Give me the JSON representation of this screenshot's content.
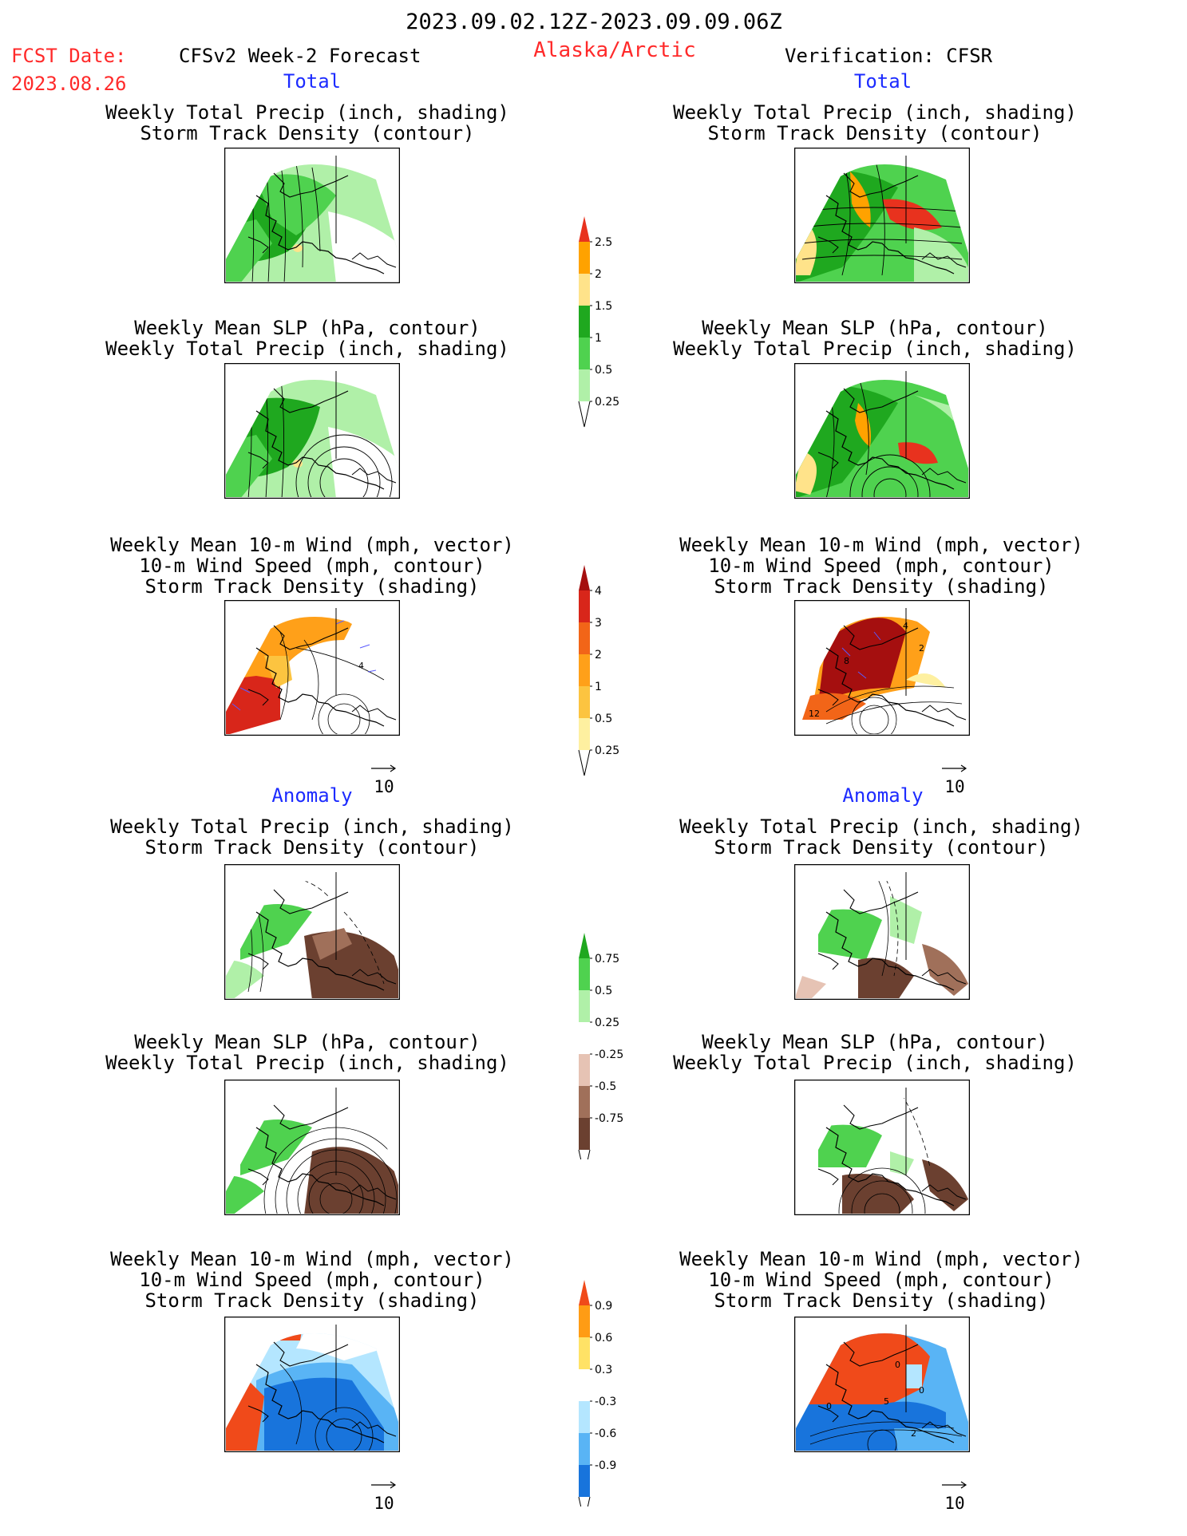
{
  "header": {
    "date_range": "2023.09.02.12Z-2023.09.09.06Z",
    "fcst_label": "FCST Date:",
    "fcst_date": "2023.08.26",
    "model_title": "CFSv2 Week-2 Forecast",
    "region": "Alaska/Arctic",
    "verification": "Verification: CFSR"
  },
  "sections": {
    "total_left": "Total",
    "total_right": "Total",
    "anomaly_left": "Anomaly",
    "anomaly_right": "Anomaly"
  },
  "panel_titles": {
    "precip_storm": [
      "Weekly Total Precip (inch, shading)",
      "Storm Track Density (contour)"
    ],
    "slp_precip": [
      "Weekly Mean SLP (hPa, contour)",
      "Weekly Total Precip (inch, shading)"
    ],
    "wind_storm": [
      "Weekly Mean 10-m Wind (mph, vector)",
      "10-m Wind Speed (mph, contour)",
      "Storm Track Density (shading)"
    ]
  },
  "vector_reference": "10",
  "contour_labels": {
    "total_wind_left": [
      "4"
    ],
    "total_wind_right": [
      "4",
      "2",
      "8",
      "12"
    ],
    "anom_wind_right": [
      "0",
      "5",
      "0",
      "2",
      "0"
    ]
  },
  "colorbars": {
    "precip_total": {
      "labels": [
        "2.5",
        "2",
        "1.5",
        "1",
        "0.5",
        "0.25"
      ],
      "colors": [
        "#e8321e",
        "#ffa200",
        "#ffe38a",
        "#1fa81f",
        "#4fd24f",
        "#b0f0a8"
      ]
    },
    "storm_total": {
      "labels": [
        "4",
        "3",
        "2",
        "1",
        "0.5",
        "0.25"
      ],
      "colors": [
        "#a50f0f",
        "#d8261a",
        "#f26518",
        "#ffa019",
        "#fcc440",
        "#fef0a0"
      ]
    },
    "precip_anom": {
      "labels": [
        "0.75",
        "0.5",
        "0.25",
        "-0.25",
        "-0.5",
        "-0.75"
      ],
      "colors": [
        "#1fa81f",
        "#4fd24f",
        "#b0f0a8",
        "#ffffff",
        "#e6c3b4",
        "#a0705a",
        "#6b4030"
      ]
    },
    "storm_anom": {
      "labels": [
        "0.9",
        "0.6",
        "0.3",
        "-0.3",
        "-0.6",
        "-0.9"
      ],
      "colors": [
        "#f04a1a",
        "#ff9c14",
        "#ffe266",
        "#ffffff",
        "#b4e6ff",
        "#59b4f5",
        "#1874dc"
      ]
    }
  },
  "colors": {
    "title_red": "#ff2a2a",
    "section_blue": "#1c2bff",
    "vector_blue": "#5a5aff"
  }
}
